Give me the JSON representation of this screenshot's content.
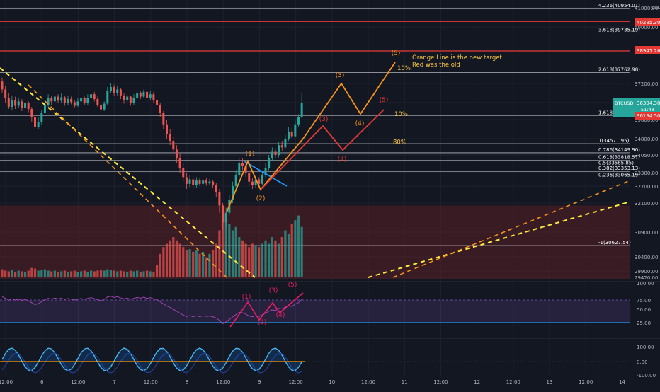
{
  "chart_data": {
    "type": "candlestick",
    "symbol": "BTCUSD",
    "colors": {
      "background": "#131722",
      "up": "#26a69a",
      "down": "#ef5350",
      "fib_line": "#d1d4dc",
      "red_level": "#e53935",
      "orange_projection": "#f7931a",
      "red_projection": "#e53935",
      "rsi_band": "#7e57c2",
      "rsi_line": "#e91e63",
      "blue": "#2196f3",
      "yellow": "#ffeb3b"
    },
    "price_axis": {
      "ticks": [
        "41000.00",
        "40000.00",
        "38980.00",
        "37200.00",
        "36400.00",
        "35600.00",
        "34800.00",
        "34050.00",
        "33300.00",
        "32700.00",
        "32100.00",
        "30900.00",
        "30400.00",
        "29900.00",
        "29420.00"
      ],
      "currency": "USD"
    },
    "time_axis": {
      "labels": [
        "12:00",
        "6",
        "12:00",
        "7",
        "12:00",
        "8",
        "12:00",
        "9",
        "12:00",
        "10",
        "12:00",
        "11",
        "12:00",
        "12",
        "12:00",
        "13",
        "12:00",
        "14"
      ]
    },
    "price_badges": [
      {
        "label": "40285.30",
        "color": "#e53935"
      },
      {
        "label": "38941.26",
        "color": "#e53935"
      },
      {
        "label": "BTCUSD",
        "color": "#26a69a"
      },
      {
        "label": "36394.30",
        "color": "#26a69a"
      },
      {
        "label": "51:48",
        "color": "#26a69a"
      },
      {
        "label": "36134.50",
        "color": "#e53935"
      }
    ],
    "fib_levels": [
      {
        "label": "4.236(40954.01)",
        "price": 40954.01
      },
      {
        "label": "3.618(39735.19)",
        "price": 39735.19
      },
      {
        "label": "2.618(37762.98)",
        "price": 37762.98
      },
      {
        "label": "1.618(35790.78)",
        "price": 35790.78
      },
      {
        "label": "1(34571.95)",
        "price": 34571.95
      },
      {
        "label": "0.786(34149.90)",
        "price": 34149.9
      },
      {
        "label": "0.618(33818.57)",
        "price": 33818.57
      },
      {
        "label": "0.5(33585.85)",
        "price": 33585.85
      },
      {
        "label": "0.382(33353.13)",
        "price": 33353.13
      },
      {
        "label": "0.236(33065.19)",
        "price": 33065.19
      },
      {
        "label": "-1(30627.54)",
        "price": 30627.54
      }
    ],
    "red_levels": [
      40285.3,
      38941.26
    ],
    "percent_labels": [
      {
        "text": "10%",
        "price": 38000
      },
      {
        "text": "10%",
        "price": 35870
      },
      {
        "text": "80%",
        "price": 34660
      }
    ],
    "wave_labels": {
      "chart_orange": [
        "(1)",
        "(2)",
        "(3)",
        "(4)",
        "(5)"
      ],
      "chart_red": [
        "(3)",
        "(4)",
        "(5)"
      ],
      "rsi": [
        "(1)",
        "(2)",
        "(3)",
        "(4)",
        "(5)"
      ]
    },
    "annotations": [
      "Orange Line is the new target",
      "Red was the old"
    ],
    "candles": [
      {
        "o": 37300,
        "c": 36950,
        "h": 37500,
        "l": 36800
      },
      {
        "o": 36950,
        "c": 36600,
        "h": 37100,
        "l": 36400
      },
      {
        "o": 36600,
        "c": 36200,
        "h": 36800,
        "l": 36100
      },
      {
        "o": 36200,
        "c": 36500,
        "h": 36700,
        "l": 36050
      },
      {
        "o": 36500,
        "c": 36250,
        "h": 36650,
        "l": 36100
      },
      {
        "o": 36250,
        "c": 36450,
        "h": 36600,
        "l": 36150
      },
      {
        "o": 36450,
        "c": 36150,
        "h": 36550,
        "l": 36000
      },
      {
        "o": 36150,
        "c": 36380,
        "h": 36500,
        "l": 36050
      },
      {
        "o": 36380,
        "c": 36100,
        "h": 36450,
        "l": 35950
      },
      {
        "o": 36100,
        "c": 35700,
        "h": 36200,
        "l": 35500
      },
      {
        "o": 35700,
        "c": 35300,
        "h": 35850,
        "l": 35100
      },
      {
        "o": 35300,
        "c": 35500,
        "h": 35700,
        "l": 35200
      },
      {
        "o": 35500,
        "c": 35900,
        "h": 36050,
        "l": 35400
      },
      {
        "o": 35900,
        "c": 36300,
        "h": 36450,
        "l": 35850
      },
      {
        "o": 36300,
        "c": 36600,
        "h": 36750,
        "l": 36200
      },
      {
        "o": 36600,
        "c": 36450,
        "h": 36700,
        "l": 36300
      },
      {
        "o": 36450,
        "c": 36650,
        "h": 36800,
        "l": 36350
      },
      {
        "o": 36650,
        "c": 36480,
        "h": 36750,
        "l": 36380
      },
      {
        "o": 36480,
        "c": 36620,
        "h": 36780,
        "l": 36400
      },
      {
        "o": 36620,
        "c": 36380,
        "h": 36700,
        "l": 36250
      },
      {
        "o": 36380,
        "c": 36550,
        "h": 36700,
        "l": 36300
      },
      {
        "o": 36550,
        "c": 36420,
        "h": 36650,
        "l": 36320
      },
      {
        "o": 36420,
        "c": 36250,
        "h": 36520,
        "l": 36150
      },
      {
        "o": 36250,
        "c": 36450,
        "h": 36600,
        "l": 36200
      },
      {
        "o": 36450,
        "c": 36580,
        "h": 36700,
        "l": 36350
      },
      {
        "o": 36580,
        "c": 36380,
        "h": 36650,
        "l": 36280
      },
      {
        "o": 36380,
        "c": 36600,
        "h": 36750,
        "l": 36300
      },
      {
        "o": 36600,
        "c": 36750,
        "h": 36900,
        "l": 36500
      },
      {
        "o": 36750,
        "c": 36550,
        "h": 36850,
        "l": 36450
      },
      {
        "o": 36550,
        "c": 36300,
        "h": 36650,
        "l": 36200
      },
      {
        "o": 36300,
        "c": 36080,
        "h": 36400,
        "l": 35950
      },
      {
        "o": 36080,
        "c": 36350,
        "h": 36450,
        "l": 36000
      },
      {
        "o": 36350,
        "c": 36900,
        "h": 37050,
        "l": 36300
      },
      {
        "o": 36900,
        "c": 37050,
        "h": 37200,
        "l": 36800
      },
      {
        "o": 37050,
        "c": 36800,
        "h": 37150,
        "l": 36700
      },
      {
        "o": 36800,
        "c": 36950,
        "h": 37100,
        "l": 36700
      },
      {
        "o": 36950,
        "c": 36700,
        "h": 37000,
        "l": 36550
      },
      {
        "o": 36700,
        "c": 36500,
        "h": 36800,
        "l": 36350
      },
      {
        "o": 36500,
        "c": 36650,
        "h": 36750,
        "l": 36400
      },
      {
        "o": 36650,
        "c": 36400,
        "h": 36700,
        "l": 36250
      },
      {
        "o": 36400,
        "c": 36600,
        "h": 36750,
        "l": 36300
      },
      {
        "o": 36600,
        "c": 36800,
        "h": 36950,
        "l": 36550
      },
      {
        "o": 36800,
        "c": 36650,
        "h": 36900,
        "l": 36550
      },
      {
        "o": 36650,
        "c": 36850,
        "h": 36950,
        "l": 36600
      },
      {
        "o": 36850,
        "c": 36600,
        "h": 36950,
        "l": 36450
      },
      {
        "o": 36600,
        "c": 36750,
        "h": 36900,
        "l": 36500
      },
      {
        "o": 36750,
        "c": 36500,
        "h": 36850,
        "l": 36400
      },
      {
        "o": 36500,
        "c": 36300,
        "h": 36600,
        "l": 36150
      },
      {
        "o": 36300,
        "c": 35900,
        "h": 36400,
        "l": 35700
      },
      {
        "o": 35900,
        "c": 35400,
        "h": 36000,
        "l": 35200
      },
      {
        "o": 35400,
        "c": 35000,
        "h": 35600,
        "l": 34800
      },
      {
        "o": 35000,
        "c": 34700,
        "h": 35200,
        "l": 34500
      },
      {
        "o": 34700,
        "c": 34300,
        "h": 34900,
        "l": 34100
      },
      {
        "o": 34300,
        "c": 33900,
        "h": 34500,
        "l": 33700
      },
      {
        "o": 33900,
        "c": 33500,
        "h": 34100,
        "l": 33300
      },
      {
        "o": 33500,
        "c": 33100,
        "h": 33700,
        "l": 32900
      },
      {
        "o": 33100,
        "c": 32800,
        "h": 33300,
        "l": 32600
      },
      {
        "o": 32800,
        "c": 33000,
        "h": 33200,
        "l": 32650
      },
      {
        "o": 33000,
        "c": 32750,
        "h": 33150,
        "l": 32600
      },
      {
        "o": 32750,
        "c": 32950,
        "h": 33100,
        "l": 32650
      },
      {
        "o": 32950,
        "c": 32800,
        "h": 33050,
        "l": 32700
      },
      {
        "o": 32800,
        "c": 32950,
        "h": 33050,
        "l": 32700
      },
      {
        "o": 32950,
        "c": 32820,
        "h": 33050,
        "l": 32720
      },
      {
        "o": 32820,
        "c": 32900,
        "h": 33000,
        "l": 32750
      },
      {
        "o": 32900,
        "c": 32750,
        "h": 32980,
        "l": 32650
      },
      {
        "o": 32750,
        "c": 32500,
        "h": 32850,
        "l": 32300
      },
      {
        "o": 32500,
        "c": 32000,
        "h": 32600,
        "l": 31700
      },
      {
        "o": 32000,
        "c": 31300,
        "h": 32100,
        "l": 31000
      },
      {
        "o": 31300,
        "c": 31700,
        "h": 31900,
        "l": 31100
      },
      {
        "o": 31700,
        "c": 32200,
        "h": 32400,
        "l": 31600
      },
      {
        "o": 32200,
        "c": 32700,
        "h": 32900,
        "l": 32100
      },
      {
        "o": 32700,
        "c": 33200,
        "h": 33400,
        "l": 32600
      },
      {
        "o": 33200,
        "c": 33700,
        "h": 33900,
        "l": 33100
      },
      {
        "o": 33700,
        "c": 33600,
        "h": 33900,
        "l": 33400
      },
      {
        "o": 33600,
        "c": 33300,
        "h": 33700,
        "l": 33100
      },
      {
        "o": 33300,
        "c": 32900,
        "h": 33400,
        "l": 32700
      },
      {
        "o": 32900,
        "c": 32750,
        "h": 33050,
        "l": 32600
      },
      {
        "o": 32750,
        "c": 33000,
        "h": 33150,
        "l": 32650
      },
      {
        "o": 33000,
        "c": 32800,
        "h": 33100,
        "l": 32700
      },
      {
        "o": 32800,
        "c": 33200,
        "h": 33350,
        "l": 32750
      },
      {
        "o": 33200,
        "c": 33500,
        "h": 33700,
        "l": 33100
      },
      {
        "o": 33500,
        "c": 33900,
        "h": 34050,
        "l": 33400
      },
      {
        "o": 33900,
        "c": 34200,
        "h": 34400,
        "l": 33800
      },
      {
        "o": 34200,
        "c": 34050,
        "h": 34350,
        "l": 33900
      },
      {
        "o": 34050,
        "c": 34500,
        "h": 34650,
        "l": 33950
      },
      {
        "o": 34500,
        "c": 34400,
        "h": 34700,
        "l": 34250
      },
      {
        "o": 34400,
        "c": 34800,
        "h": 34950,
        "l": 34300
      },
      {
        "o": 34800,
        "c": 35100,
        "h": 35300,
        "l": 34700
      },
      {
        "o": 35100,
        "c": 34900,
        "h": 35250,
        "l": 34800
      },
      {
        "o": 34900,
        "c": 35400,
        "h": 35550,
        "l": 34850
      },
      {
        "o": 35400,
        "c": 35700,
        "h": 35850,
        "l": 35300
      },
      {
        "o": 35700,
        "c": 36394,
        "h": 36800,
        "l": 35650
      }
    ],
    "volume": [
      0.12,
      0.1,
      0.09,
      0.11,
      0.08,
      0.1,
      0.09,
      0.08,
      0.1,
      0.14,
      0.13,
      0.1,
      0.11,
      0.12,
      0.1,
      0.09,
      0.1,
      0.08,
      0.09,
      0.1,
      0.08,
      0.09,
      0.1,
      0.08,
      0.09,
      0.1,
      0.08,
      0.1,
      0.09,
      0.1,
      0.11,
      0.1,
      0.12,
      0.11,
      0.1,
      0.09,
      0.1,
      0.09,
      0.08,
      0.1,
      0.09,
      0.1,
      0.08,
      0.09,
      0.1,
      0.09,
      0.08,
      0.18,
      0.35,
      0.45,
      0.5,
      0.55,
      0.6,
      0.55,
      0.5,
      0.45,
      0.4,
      0.42,
      0.38,
      0.4,
      0.35,
      0.38,
      0.3,
      0.35,
      0.4,
      0.5,
      0.7,
      0.85,
      0.95,
      0.8,
      0.7,
      0.75,
      0.6,
      0.55,
      0.5,
      0.45,
      0.5,
      0.48,
      0.45,
      0.5,
      0.55,
      0.5,
      0.6,
      0.55,
      0.5,
      0.6,
      0.7,
      0.65,
      0.8,
      0.85,
      0.92,
      0.75
    ],
    "rsi": {
      "levels": [
        70,
        30
      ],
      "axis": [
        "100.00",
        "75.00",
        "50.00",
        "25.00"
      ]
    },
    "oscillator": {
      "axis": [
        "100.00",
        "0.00",
        "-100.00"
      ]
    }
  }
}
